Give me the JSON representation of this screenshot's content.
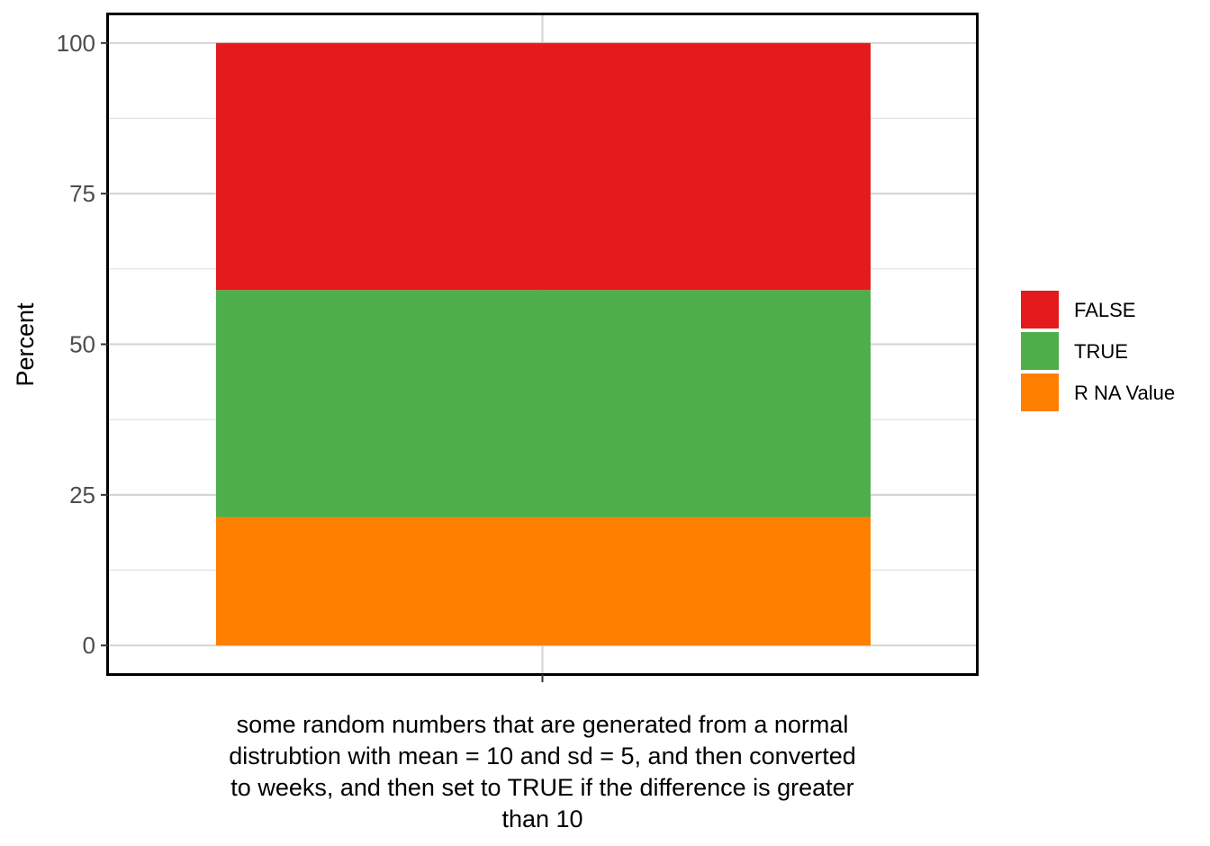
{
  "chart_data": {
    "type": "bar",
    "stacked": true,
    "categories": [
      ""
    ],
    "series": [
      {
        "name": "R NA Value",
        "values": [
          21.3
        ],
        "color": "#FF7F00"
      },
      {
        "name": "TRUE",
        "values": [
          37.7
        ],
        "color": "#4DAF4A"
      },
      {
        "name": "FALSE",
        "values": [
          41.0
        ],
        "color": "#E41A1C"
      }
    ],
    "legend_order": [
      "FALSE",
      "TRUE",
      "R NA Value"
    ],
    "legend_position": "right",
    "xlabel_lines": [
      "some random numbers that are generated from a normal",
      "distrubtion with mean = 10 and sd = 5, and then converted",
      "to weeks, and then set to TRUE if the difference is greater",
      "than 10"
    ],
    "ylabel": "Percent",
    "ylim": [
      -4.75,
      104.75
    ],
    "yticks": [
      0,
      25,
      50,
      75,
      100
    ],
    "yticks_minor": [
      12.5,
      37.5,
      62.5,
      87.5
    ],
    "grid": true
  }
}
